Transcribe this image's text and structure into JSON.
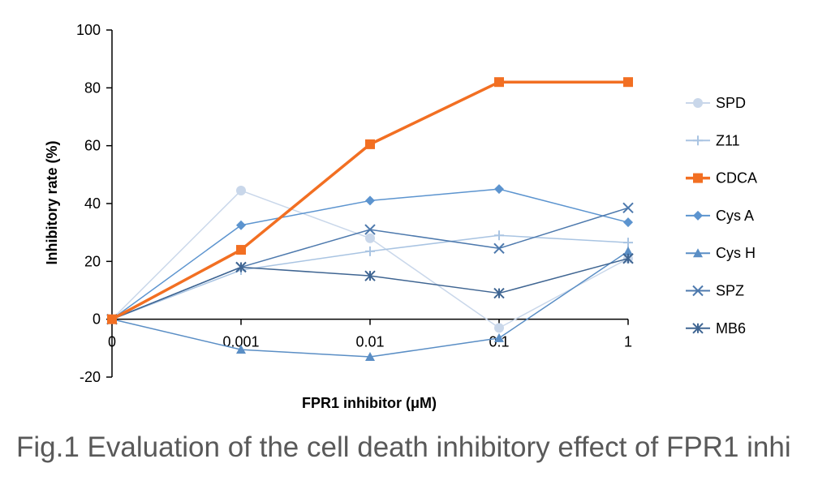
{
  "chart_data": {
    "type": "line",
    "categories": [
      "0",
      "0.001",
      "0.01",
      "0.1",
      "1"
    ],
    "xlabel": "FPR1 inhibitor (μM)",
    "ylabel": "Inhibitory rate (%)",
    "ylim": [
      -20,
      100
    ],
    "yticks": [
      -20,
      0,
      20,
      40,
      60,
      80,
      100
    ],
    "legend_position": "right",
    "grid": false,
    "series": [
      {
        "name": "SPD",
        "values": [
          0,
          44.5,
          28,
          -3,
          21
        ],
        "color": "#c9d7ea",
        "marker": "circle",
        "width": 1.5
      },
      {
        "name": "Z11",
        "values": [
          0,
          17,
          23.5,
          29,
          26.5
        ],
        "color": "#a9c4e2",
        "marker": "plus",
        "width": 1.5
      },
      {
        "name": "CDCA",
        "values": [
          0,
          24,
          60.5,
          82,
          82
        ],
        "color": "#f26f22",
        "marker": "square",
        "width": 3.5
      },
      {
        "name": "Cys A",
        "values": [
          0,
          32.5,
          41,
          45,
          33.5
        ],
        "color": "#5c94cf",
        "marker": "diamond",
        "width": 1.5
      },
      {
        "name": "Cys H",
        "values": [
          0,
          -10.5,
          -13,
          -6.5,
          23.5
        ],
        "color": "#5a8ec5",
        "marker": "triangle",
        "width": 1.5
      },
      {
        "name": "SPZ",
        "values": [
          0,
          18,
          31,
          24.5,
          38.5
        ],
        "color": "#4d79ad",
        "marker": "x",
        "width": 1.5
      },
      {
        "name": "MB6",
        "values": [
          0,
          18,
          15,
          9,
          21
        ],
        "color": "#3f6592",
        "marker": "asterisk",
        "width": 1.5
      }
    ]
  },
  "caption": "Fig.1 Evaluation of the cell death inhibitory effect of FPR1 inhi"
}
